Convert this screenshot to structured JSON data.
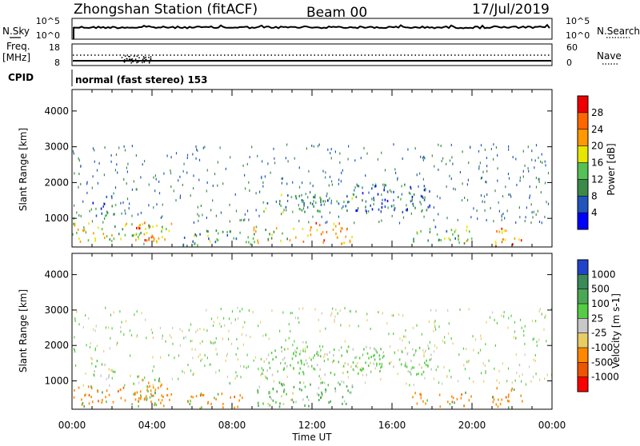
{
  "header": {
    "station": "Zhongshan Station (fitACF)",
    "beam": "Beam 00",
    "date": "17/Jul/2019"
  },
  "left_labels": {
    "nsky": "N.Sky",
    "freq": "Freq.",
    "freq_unit": "[MHz]",
    "cpid": "CPID"
  },
  "right_labels": {
    "nsearch": "N.Search",
    "nave": "Nave"
  },
  "cpid_text": "normal (fast stereo) 153",
  "noise_panel": {
    "top_tick": "10^5",
    "bottom_tick": "10^0"
  },
  "freq_panel": {
    "left_top": "18",
    "left_bottom": "8",
    "right_top": "60",
    "right_bottom": "0"
  },
  "chart_data": [
    {
      "type": "heatmap",
      "name": "power",
      "ylabel": "Slant Range [km]",
      "xlabel": "",
      "ylim": [
        200,
        4600
      ],
      "yticks": [
        "1000",
        "2000",
        "3000",
        "4000"
      ],
      "colorbar": {
        "label": "Power [dB]",
        "ticks": [
          "4",
          "8",
          "12",
          "16",
          "20",
          "24",
          "28"
        ],
        "colors": [
          "#0000ff",
          "#2255bb",
          "#3a8a4a",
          "#55c055",
          "#e6e600",
          "#ff9900",
          "#ff6600",
          "#ee0000"
        ]
      },
      "regions": [
        {
          "t": [
            1.0,
            2.2
          ],
          "r": [
            1100,
            1700
          ],
          "level": 8
        },
        {
          "t": [
            0.0,
            5.0
          ],
          "r": [
            300,
            900
          ],
          "level": 16
        },
        {
          "t": [
            3.0,
            4.2
          ],
          "r": [
            400,
            1000
          ],
          "level": 24
        },
        {
          "t": [
            5.5,
            8.5
          ],
          "r": [
            250,
            700
          ],
          "level": 12
        },
        {
          "t": [
            8.5,
            9.5
          ],
          "r": [
            300,
            700
          ],
          "level": 20
        },
        {
          "t": [
            9.5,
            14.0
          ],
          "r": [
            1200,
            1700
          ],
          "level": 10
        },
        {
          "t": [
            14.0,
            18.0
          ],
          "r": [
            1200,
            2000
          ],
          "level": 8
        },
        {
          "t": [
            9.0,
            11.2
          ],
          "r": [
            400,
            800
          ],
          "level": 16
        },
        {
          "t": [
            11.5,
            14.0
          ],
          "r": [
            300,
            900
          ],
          "level": 22
        },
        {
          "t": [
            17.0,
            20.0
          ],
          "r": [
            300,
            800
          ],
          "level": 14
        },
        {
          "t": [
            21.0,
            22.5
          ],
          "r": [
            250,
            750
          ],
          "level": 24
        }
      ]
    },
    {
      "type": "heatmap",
      "name": "velocity",
      "ylabel": "Slant Range [km]",
      "xlabel": "Time UT",
      "ylim": [
        200,
        4600
      ],
      "yticks": [
        "1000",
        "2000",
        "3000",
        "4000"
      ],
      "xticks": [
        "00:00",
        "04:00",
        "08:00",
        "12:00",
        "16:00",
        "20:00",
        "00:00"
      ],
      "colorbar": {
        "label": "Velocity [m s-1]",
        "ticks": [
          "1000",
          "500",
          "100",
          "25",
          "-25",
          "-100",
          "-500",
          "-1000"
        ],
        "colors": [
          "#2244cc",
          "#3a8a5a",
          "#4aa855",
          "#55cc44",
          "#c8c8c8",
          "#e8cc66",
          "#ff8800",
          "#ee5500",
          "#ff0000"
        ]
      },
      "regions": [
        {
          "t": [
            1.0,
            2.2
          ],
          "r": [
            1100,
            1600
          ],
          "level": 25
        },
        {
          "t": [
            0.0,
            5.0
          ],
          "r": [
            300,
            900
          ],
          "level": -500
        },
        {
          "t": [
            3.0,
            4.5
          ],
          "r": [
            400,
            1200
          ],
          "level": -500
        },
        {
          "t": [
            5.5,
            8.5
          ],
          "r": [
            250,
            700
          ],
          "level": -500
        },
        {
          "t": [
            9.0,
            14.0
          ],
          "r": [
            300,
            1000
          ],
          "level": 100
        },
        {
          "t": [
            9.5,
            18.0
          ],
          "r": [
            1200,
            2000
          ],
          "level": 25
        },
        {
          "t": [
            17.0,
            20.0
          ],
          "r": [
            300,
            700
          ],
          "level": -500
        },
        {
          "t": [
            21.0,
            22.5
          ],
          "r": [
            250,
            900
          ],
          "level": -500
        }
      ]
    }
  ]
}
